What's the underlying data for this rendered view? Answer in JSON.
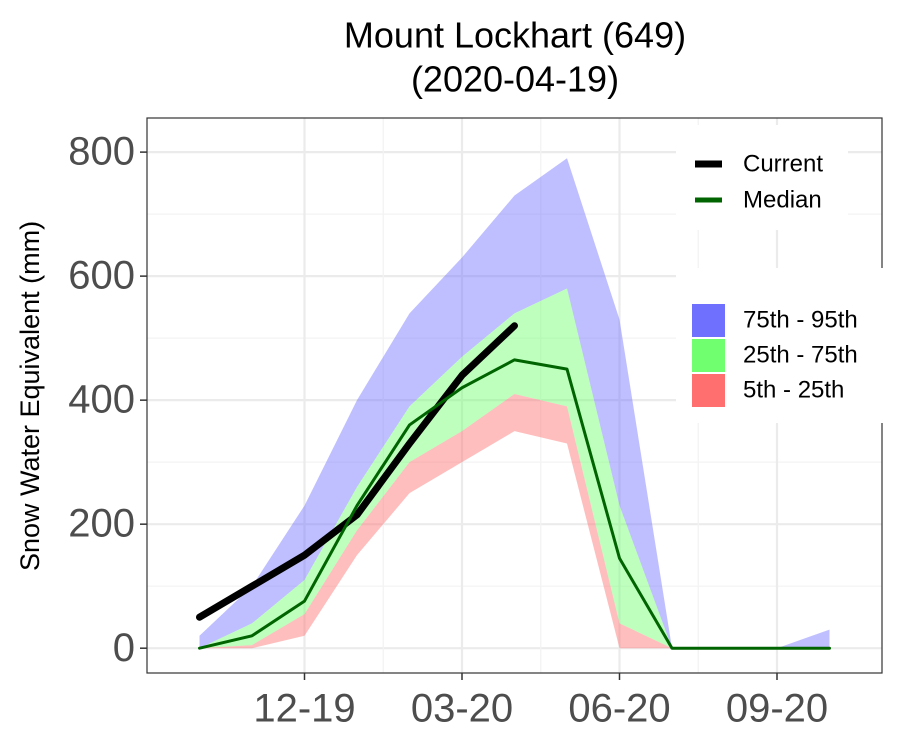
{
  "chart_data": {
    "type": "line",
    "title": "Mount Lockhart (649)",
    "subtitle": "(2020-04-19)",
    "y_label": "Snow Water Equivalent (mm)",
    "x": [
      "2019-10",
      "2019-11",
      "2019-12",
      "2020-01",
      "2020-02",
      "2020-03",
      "2020-04",
      "2020-05",
      "2020-06",
      "2020-07",
      "2020-08",
      "2020-09",
      "2020-10"
    ],
    "bands": [
      {
        "name": "75th - 95th",
        "color": "#7070ff",
        "lower": [
          0,
          40,
          110,
          260,
          390,
          470,
          540,
          580,
          230,
          0,
          0,
          0,
          0
        ],
        "upper": [
          20,
          100,
          230,
          400,
          540,
          630,
          730,
          790,
          530,
          0,
          0,
          0,
          30
        ]
      },
      {
        "name": "25th - 75th",
        "color": "#6fff6f",
        "lower": [
          0,
          5,
          55,
          190,
          300,
          350,
          410,
          390,
          40,
          0,
          0,
          0,
          0
        ],
        "upper": [
          0,
          40,
          110,
          260,
          390,
          470,
          540,
          580,
          230,
          0,
          0,
          0,
          0
        ]
      },
      {
        "name": "5th - 25th",
        "color": "#ff6f6f",
        "lower": [
          0,
          0,
          20,
          150,
          250,
          300,
          350,
          330,
          0,
          0,
          0,
          0,
          0
        ],
        "upper": [
          0,
          5,
          55,
          190,
          300,
          350,
          410,
          390,
          40,
          0,
          0,
          0,
          0
        ]
      }
    ],
    "series": [
      {
        "name": "Current",
        "color": "#000000",
        "values": [
          50,
          100,
          150,
          215,
          330,
          440,
          520,
          null,
          null,
          null,
          null,
          null,
          null
        ]
      },
      {
        "name": "Median",
        "color": "#006400",
        "values": [
          0,
          20,
          76,
          230,
          360,
          420,
          465,
          450,
          145,
          0,
          0,
          0,
          0
        ]
      }
    ],
    "xlim": [
      "2019-09",
      "2020-11"
    ],
    "xticks": [
      {
        "value": "2019-12",
        "label": "12-19"
      },
      {
        "value": "2020-03",
        "label": "03-20"
      },
      {
        "value": "2020-06",
        "label": "06-20"
      },
      {
        "value": "2020-09",
        "label": "09-20"
      }
    ],
    "ylim": [
      -40,
      855
    ],
    "yticks": [
      0,
      200,
      400,
      600,
      800
    ],
    "grid": true
  }
}
